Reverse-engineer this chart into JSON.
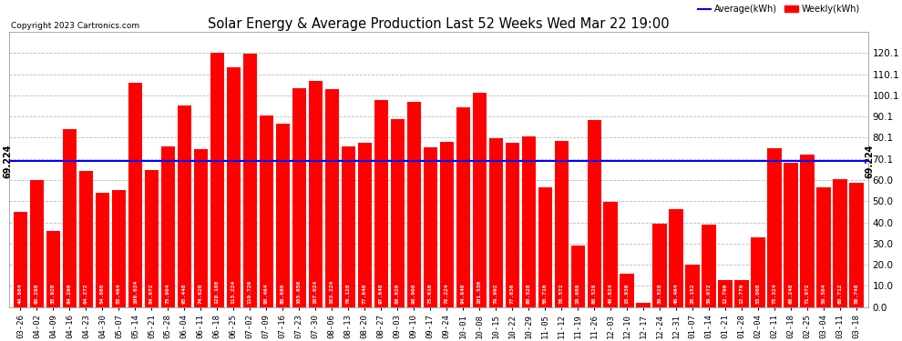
{
  "title": "Solar Energy & Average Production Last 52 Weeks Wed Mar 22 19:00",
  "copyright": "Copyright 2023 Cartronics.com",
  "average_label": "Average(kWh)",
  "weekly_label": "Weekly(kWh)",
  "average_value": 69.224,
  "average_line_color": "#0000FF",
  "bar_color": "#FF0000",
  "ylabel_right_ticks": [
    0.0,
    10.0,
    20.0,
    30.0,
    40.0,
    50.0,
    60.0,
    70.1,
    80.1,
    90.1,
    100.1,
    110.1,
    120.1
  ],
  "categories": [
    "03-26",
    "04-02",
    "04-09",
    "04-16",
    "04-23",
    "04-30",
    "05-07",
    "05-14",
    "05-21",
    "05-28",
    "06-04",
    "06-11",
    "06-18",
    "06-25",
    "07-02",
    "07-09",
    "07-16",
    "07-23",
    "07-30",
    "08-06",
    "08-13",
    "08-20",
    "08-27",
    "09-03",
    "09-10",
    "09-17",
    "09-24",
    "10-01",
    "10-08",
    "10-15",
    "10-22",
    "10-29",
    "11-05",
    "11-12",
    "11-19",
    "11-26",
    "12-03",
    "12-10",
    "12-17",
    "12-24",
    "12-31",
    "01-07",
    "01-14",
    "01-21",
    "01-28",
    "02-04",
    "02-11",
    "02-18",
    "02-25",
    "03-04",
    "03-11",
    "03-18"
  ],
  "values": [
    44.864,
    60.288,
    35.92,
    84.296,
    64.272,
    54.08,
    55.464,
    106.024,
    64.672,
    75.904,
    95.448,
    74.62,
    120.1,
    113.224,
    119.72,
    90.464,
    86.68,
    103.656,
    107.024,
    103.224,
    76.128,
    77.84,
    97.848,
    89.02,
    96.908,
    75.616,
    78.224,
    94.64,
    101.536,
    79.992,
    77.636,
    80.528,
    56.716,
    78.572,
    29.088,
    88.528,
    49.624,
    15.936,
    1.928,
    39.528,
    46.464,
    20.152,
    39.072,
    12.796,
    12.776,
    33.008,
    75.324,
    68.248,
    71.972,
    56.584,
    60.712,
    58.748
  ],
  "ylim": [
    0,
    130
  ],
  "background_color": "#ffffff",
  "grid_color": "#bbbbbb",
  "avg_annotation": "69.224"
}
